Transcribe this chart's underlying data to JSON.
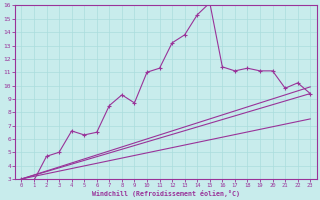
{
  "background_color": "#c8ecec",
  "line_color": "#993399",
  "grid_color": "#aadddd",
  "xlabel": "Windchill (Refroidissement éolien,°C)",
  "xlim": [
    -0.5,
    23.5
  ],
  "ylim": [
    3,
    16
  ],
  "xticks": [
    0,
    1,
    2,
    3,
    4,
    5,
    6,
    7,
    8,
    9,
    10,
    11,
    12,
    13,
    14,
    15,
    16,
    17,
    18,
    19,
    20,
    21,
    22,
    23
  ],
  "yticks": [
    3,
    4,
    5,
    6,
    7,
    8,
    9,
    10,
    11,
    12,
    13,
    14,
    15,
    16
  ],
  "main_x": [
    0,
    1,
    2,
    3,
    4,
    5,
    6,
    7,
    8,
    9,
    10,
    11,
    12,
    13,
    14,
    15,
    16,
    17,
    18,
    19,
    20,
    21,
    22,
    23
  ],
  "main_y": [
    3.0,
    2.9,
    4.7,
    5.0,
    6.6,
    6.3,
    6.5,
    8.5,
    9.3,
    8.7,
    11.0,
    11.3,
    13.2,
    13.8,
    15.3,
    16.2,
    11.4,
    11.1,
    11.3,
    11.1,
    11.1,
    9.8,
    10.2,
    9.4
  ],
  "trend_lines": [
    {
      "x": [
        0,
        23
      ],
      "y": [
        3.0,
        9.4
      ]
    },
    {
      "x": [
        0,
        23
      ],
      "y": [
        3.0,
        9.9
      ]
    },
    {
      "x": [
        0,
        23
      ],
      "y": [
        3.0,
        7.5
      ]
    }
  ]
}
